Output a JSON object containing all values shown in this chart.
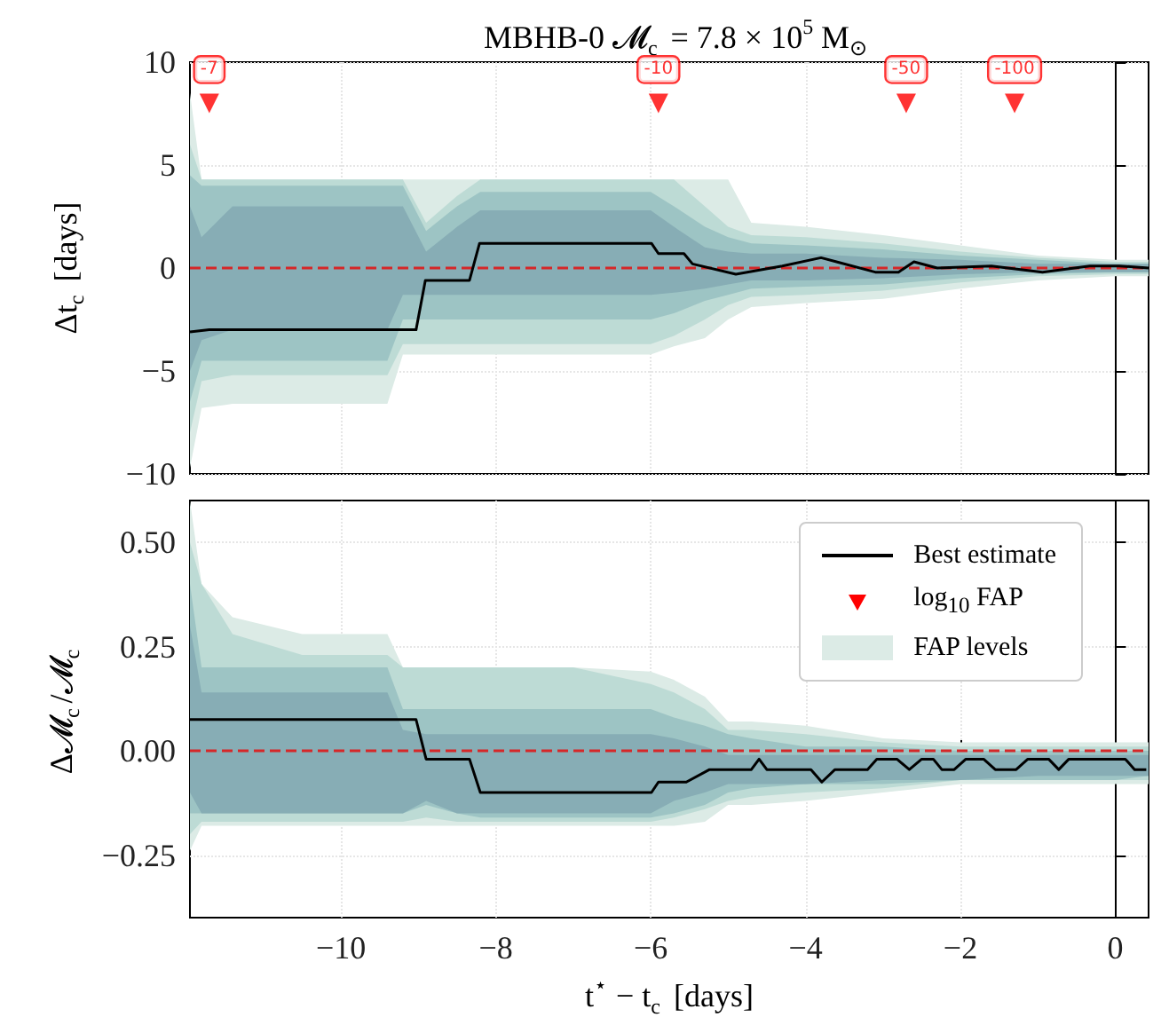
{
  "chart_data": [
    {
      "type": "line",
      "title": "MBHB-0 𝓜$_{c}$ = 7.8 × 10$^{5}$ M$_{⊙}$",
      "ylabel": "Δt$_{c}$ [days]",
      "xlim": [
        -11.95,
        0.43
      ],
      "xticks": [
        -10,
        -8,
        -6,
        -4,
        -2,
        0
      ],
      "ylim": [
        -10,
        10
      ],
      "yticks": [
        {
          "value": -10,
          "label": "−10"
        },
        {
          "value": -5,
          "label": "−5"
        },
        0,
        5,
        10
      ],
      "tick_labels": "y",
      "grid": true,
      "legend": false,
      "ref_lines": [
        {
          "axis": "y",
          "value": 0,
          "color": "#d62728",
          "line_style": "dashed"
        }
      ],
      "annotations": [
        {
          "text": "-7",
          "x": -11.7,
          "y": 8
        },
        {
          "text": "-10",
          "x": -5.9,
          "y": 8
        },
        {
          "text": "-50",
          "x": -2.7,
          "y": 8
        },
        {
          "text": "-100",
          "x": -1.3,
          "y": 8
        }
      ],
      "series": [
        {
          "color": "#dcebe6",
          "x": [
            -11.95,
            -11.8,
            -11.4,
            -10.5,
            -9.4,
            -9.2,
            -8.9,
            -8.5,
            -8.2,
            -7,
            -6,
            -5.7,
            -5.3,
            -5.0,
            -4.7,
            -4,
            -3,
            -2,
            -1,
            0,
            0.43
          ],
          "values": [
            null,
            null,
            null,
            null,
            null,
            null,
            null,
            null,
            null,
            null,
            null,
            null,
            null,
            null,
            null,
            null,
            null,
            null,
            null,
            null,
            null
          ],
          "upper": [
            8.5,
            4.3,
            4.3,
            4.3,
            4.3,
            4.3,
            4.3,
            4.3,
            4.3,
            4.3,
            4.3,
            4.3,
            4.3,
            4.3,
            2.2,
            2.0,
            1.6,
            1.1,
            0.6,
            0.4,
            0.4
          ],
          "lower": [
            -9.7,
            -6.8,
            -6.6,
            -6.6,
            -6.6,
            -4.2,
            -4.2,
            -4.2,
            -4.2,
            -4.2,
            -4.2,
            -3.8,
            -3.4,
            -2.5,
            -1.9,
            -1.7,
            -1.5,
            -1.0,
            -0.6,
            -0.4,
            -0.4
          ]
        },
        {
          "color": "#bddbd5",
          "x": [
            -11.95,
            -11.8,
            -11.4,
            -10.5,
            -9.4,
            -9.2,
            -8.9,
            -8.5,
            -8.2,
            -7,
            -6,
            -5.7,
            -5.3,
            -5.0,
            -4.7,
            -4,
            -3,
            -2,
            -1,
            0,
            0.43
          ],
          "values": [
            null,
            null,
            null,
            null,
            null,
            null,
            null,
            null,
            null,
            null,
            null,
            null,
            null,
            null,
            null,
            null,
            null,
            null,
            null,
            null,
            null
          ],
          "upper": [
            6.0,
            4.3,
            4.3,
            4.3,
            4.3,
            4.3,
            2.2,
            3.5,
            4.3,
            4.3,
            4.3,
            4.3,
            3.0,
            2.0,
            1.6,
            1.5,
            1.2,
            0.8,
            0.5,
            0.3,
            0.3
          ],
          "lower": [
            -8.0,
            -5.5,
            -5.2,
            -5.2,
            -5.2,
            -3.7,
            -3.7,
            -3.7,
            -3.7,
            -3.7,
            -3.7,
            -3.3,
            -2.5,
            -1.8,
            -1.4,
            -1.3,
            -1.1,
            -0.7,
            -0.4,
            -0.3,
            -0.3
          ]
        },
        {
          "color": "#9dc4c4",
          "x": [
            -11.95,
            -11.8,
            -11.4,
            -10.5,
            -9.4,
            -9.2,
            -8.9,
            -8.5,
            -8.2,
            -7,
            -6,
            -5.7,
            -5.3,
            -5.0,
            -4.7,
            -4,
            -3,
            -2,
            -1,
            0,
            0.43
          ],
          "values": [
            null,
            null,
            null,
            null,
            null,
            null,
            null,
            null,
            null,
            null,
            null,
            null,
            null,
            null,
            null,
            null,
            null,
            null,
            null,
            null,
            null
          ],
          "upper": [
            4.5,
            4.0,
            4.0,
            4.0,
            4.0,
            4.0,
            1.8,
            3.0,
            3.7,
            3.7,
            3.7,
            3.0,
            2.0,
            1.5,
            1.2,
            1.1,
            0.9,
            0.6,
            0.4,
            0.2,
            0.2
          ],
          "lower": [
            -6.5,
            -4.5,
            -4.5,
            -4.5,
            -4.5,
            -2.5,
            -2.5,
            -2.5,
            -2.5,
            -2.5,
            -2.5,
            -2.2,
            -1.6,
            -1.3,
            -1.0,
            -0.9,
            -0.8,
            -0.5,
            -0.3,
            -0.2,
            -0.2
          ]
        },
        {
          "color": "#87adb5",
          "x": [
            -11.95,
            -11.8,
            -11.4,
            -10.5,
            -9.4,
            -9.2,
            -8.9,
            -8.5,
            -8.2,
            -7,
            -6,
            -5.7,
            -5.3,
            -5.0,
            -4.7,
            -4,
            -3,
            -2,
            -1,
            0,
            0.43
          ],
          "values": [
            null,
            null,
            null,
            null,
            null,
            null,
            null,
            null,
            null,
            null,
            null,
            null,
            null,
            null,
            null,
            null,
            null,
            null,
            null,
            null,
            null
          ],
          "upper": [
            3.0,
            1.5,
            3.0,
            3.0,
            3.0,
            3.0,
            0.8,
            2.0,
            2.8,
            2.8,
            2.8,
            2.0,
            1.0,
            0.8,
            0.7,
            0.7,
            0.5,
            0.4,
            0.2,
            0.2,
            0.2
          ],
          "lower": [
            -5.0,
            -3.5,
            -3.0,
            -3.0,
            -3.0,
            -1.3,
            -1.3,
            -1.3,
            -1.3,
            -1.3,
            -1.3,
            -1.2,
            -1.0,
            -0.8,
            -0.6,
            -0.6,
            -0.5,
            -0.3,
            -0.2,
            -0.2,
            -0.2
          ]
        },
        {
          "color": "#000000",
          "x": [
            -11.95,
            -11.7,
            -9.03,
            -8.91,
            -8.34,
            -8.21,
            -5.99,
            -5.9,
            -5.57,
            -5.46,
            -4.9,
            -4.3,
            -3.8,
            -3.6,
            -3.1,
            -2.8,
            -2.6,
            -2.3,
            -1.6,
            -0.94,
            -0.33,
            0.05,
            0.43
          ],
          "values": [
            -3.1,
            -3.0,
            -3.0,
            -0.6,
            -0.6,
            1.2,
            1.2,
            0.7,
            0.7,
            0.2,
            -0.3,
            0.1,
            0.5,
            0.3,
            -0.2,
            -0.2,
            0.3,
            0,
            0.1,
            -0.2,
            0.1,
            0.1,
            0.0
          ]
        },
        {
          "type": "scatter",
          "name": "log$_{10}$ FAP",
          "color": "#ff0000",
          "marker": "triangle",
          "x": [
            -11.7,
            -5.9,
            -2.7,
            -1.3
          ],
          "values": [
            8,
            8,
            8,
            8
          ]
        }
      ]
    },
    {
      "type": "line",
      "xlabel": "t$^{⋆}$ − t$_{c}$ [days]",
      "ylabel": "Δ𝓜$_{c}$/𝓜$_{c}$",
      "xlim": [
        -11.95,
        0.43
      ],
      "xticks": [
        {
          "value": -10,
          "label": "−10"
        },
        {
          "value": -8,
          "label": "−8"
        },
        {
          "value": -6,
          "label": "−6"
        },
        {
          "value": -4,
          "label": "−4"
        },
        {
          "value": -2,
          "label": "−2"
        },
        0
      ],
      "ylim": [
        -0.4,
        0.6
      ],
      "yticks": [
        {
          "value": -0.25,
          "label": "−0.25"
        },
        {
          "value": 0,
          "label": "0.00"
        },
        {
          "value": 0.25,
          "label": "0.25"
        },
        {
          "value": 0.5,
          "label": "0.50"
        }
      ],
      "grid": true,
      "legend": "top right",
      "ref_lines": [
        {
          "axis": "y",
          "value": 0,
          "color": "#d62728",
          "line_style": "dashed"
        }
      ],
      "series": [
        {
          "name": "FAP levels",
          "color": "#dcebe6",
          "x": [
            -11.95,
            -11.8,
            -11.4,
            -10.5,
            -9.4,
            -9.2,
            -8.9,
            -8.5,
            -8.2,
            -7,
            -6,
            -5.7,
            -5.3,
            -5.0,
            -4.7,
            -4,
            -3,
            -2,
            -1,
            0,
            0.43
          ],
          "values": [
            null,
            null,
            null,
            null,
            null,
            null,
            null,
            null,
            null,
            null,
            null,
            null,
            null,
            null,
            null,
            null,
            null,
            null,
            null,
            null,
            null
          ],
          "upper": [
            0.6,
            0.4,
            0.32,
            0.28,
            0.28,
            0.2,
            0.2,
            0.2,
            0.2,
            0.2,
            0.19,
            0.17,
            0.13,
            0.07,
            0.07,
            0.06,
            0.03,
            0.02,
            0.02,
            0.02,
            0.02
          ],
          "lower": [
            -0.24,
            -0.18,
            -0.18,
            -0.18,
            -0.18,
            -0.18,
            -0.18,
            -0.18,
            -0.18,
            -0.18,
            -0.18,
            -0.18,
            -0.17,
            -0.13,
            -0.13,
            -0.12,
            -0.1,
            -0.08,
            -0.08,
            -0.08,
            -0.08
          ]
        },
        {
          "color": "#bddbd5",
          "x": [
            -11.95,
            -11.8,
            -11.4,
            -10.5,
            -9.4,
            -9.2,
            -8.9,
            -8.5,
            -8.2,
            -7,
            -6,
            -5.7,
            -5.3,
            -5.0,
            -4.7,
            -4,
            -3,
            -2,
            -1,
            0,
            0.43
          ],
          "values": [
            null,
            null,
            null,
            null,
            null,
            null,
            null,
            null,
            null,
            null,
            null,
            null,
            null,
            null,
            null,
            null,
            null,
            null,
            null,
            null,
            null
          ],
          "upper": [
            0.5,
            0.4,
            0.28,
            0.23,
            0.23,
            0.2,
            0.2,
            0.2,
            0.2,
            0.2,
            0.16,
            0.14,
            0.1,
            0.05,
            0.05,
            0.04,
            0.02,
            0.01,
            0.01,
            0.01,
            0.01
          ],
          "lower": [
            -0.2,
            -0.17,
            -0.17,
            -0.17,
            -0.17,
            -0.17,
            -0.16,
            -0.17,
            -0.17,
            -0.17,
            -0.17,
            -0.16,
            -0.14,
            -0.12,
            -0.11,
            -0.1,
            -0.09,
            -0.07,
            -0.07,
            -0.07,
            -0.07
          ]
        },
        {
          "color": "#9dc4c4",
          "x": [
            -11.95,
            -11.8,
            -11.4,
            -10.5,
            -9.4,
            -9.2,
            -8.9,
            -8.5,
            -8.2,
            -7,
            -6,
            -5.7,
            -5.3,
            -5.0,
            -4.7,
            -4,
            -3,
            -2,
            -1,
            0,
            0.43
          ],
          "values": [
            null,
            null,
            null,
            null,
            null,
            null,
            null,
            null,
            null,
            null,
            null,
            null,
            null,
            null,
            null,
            null,
            null,
            null,
            null,
            null,
            null
          ],
          "upper": [
            0.4,
            0.2,
            0.2,
            0.2,
            0.2,
            0.1,
            0.1,
            0.1,
            0.1,
            0.1,
            0.1,
            0.08,
            0.06,
            0.04,
            0.03,
            0.01,
            0.01,
            0.0,
            0.0,
            0.0,
            0.0
          ],
          "lower": [
            -0.15,
            -0.15,
            -0.15,
            -0.15,
            -0.15,
            -0.15,
            -0.13,
            -0.15,
            -0.16,
            -0.16,
            -0.16,
            -0.15,
            -0.13,
            -0.1,
            -0.09,
            -0.08,
            -0.08,
            -0.07,
            -0.07,
            -0.07,
            -0.06
          ]
        },
        {
          "color": "#87adb5",
          "x": [
            -11.95,
            -11.8,
            -11.4,
            -10.5,
            -9.4,
            -9.2,
            -8.9,
            -8.5,
            -8.2,
            -7,
            -6,
            -5.7,
            -5.3,
            -5.0,
            -4.7,
            -4,
            -3,
            -2,
            -1,
            0,
            0.43
          ],
          "values": [
            null,
            null,
            null,
            null,
            null,
            null,
            null,
            null,
            null,
            null,
            null,
            null,
            null,
            null,
            null,
            null,
            null,
            null,
            null,
            null,
            null
          ],
          "upper": [
            0.3,
            0.14,
            0.14,
            0.14,
            0.14,
            0.05,
            0.04,
            0.04,
            0.04,
            0.04,
            0.04,
            0.03,
            0.01,
            -0.01,
            -0.01,
            -0.01,
            -0.01,
            -0.01,
            -0.01,
            -0.01,
            -0.01
          ],
          "lower": [
            -0.1,
            -0.15,
            -0.15,
            -0.15,
            -0.15,
            -0.15,
            -0.12,
            -0.15,
            -0.15,
            -0.15,
            -0.15,
            -0.12,
            -0.1,
            -0.08,
            -0.08,
            -0.08,
            -0.07,
            -0.07,
            -0.06,
            -0.06,
            -0.06
          ]
        },
        {
          "name": "Best estimate",
          "color": "#000000",
          "x": [
            -11.95,
            -9.03,
            -8.9,
            -8.34,
            -8.2,
            -5.99,
            -5.9,
            -5.54,
            -5.24,
            -4.7,
            -4.6,
            -4.5,
            -3.93,
            -3.79,
            -3.62,
            -3.2,
            -3.08,
            -2.82,
            -2.66,
            -2.5,
            -2.35,
            -2.24,
            -2.08,
            -1.93,
            -1.7,
            -1.55,
            -1.28,
            -1.13,
            -0.86,
            -0.73,
            -0.6,
            0.13,
            0.25,
            0.4
          ],
          "values": [
            0.075,
            0.075,
            -0.02,
            -0.02,
            -0.1,
            -0.1,
            -0.075,
            -0.075,
            -0.045,
            -0.045,
            -0.02,
            -0.045,
            -0.045,
            -0.075,
            -0.045,
            -0.045,
            -0.02,
            -0.02,
            -0.045,
            -0.02,
            -0.02,
            -0.045,
            -0.045,
            -0.02,
            -0.02,
            -0.045,
            -0.045,
            -0.02,
            -0.02,
            -0.045,
            -0.02,
            -0.02,
            -0.045,
            -0.045
          ]
        }
      ]
    }
  ]
}
